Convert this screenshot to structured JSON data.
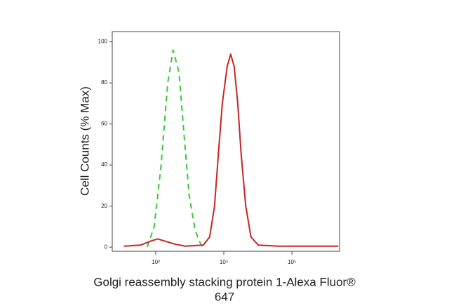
{
  "chart_data": {
    "type": "line",
    "ylabel": "Cell Counts (% Max)",
    "xlabel": [
      "Golgi reassembly stacking protein 1-Alexa Fluor®",
      "647"
    ],
    "xscale": "log",
    "xlim": [
      230,
      500000
    ],
    "ylim": [
      -2,
      105
    ],
    "xticks": [
      {
        "value": 1000,
        "label": "10³"
      },
      {
        "value": 10000,
        "label": "10⁴"
      },
      {
        "value": 100000,
        "label": "10⁵"
      }
    ],
    "yticks": [
      0,
      20,
      40,
      60,
      80,
      100
    ],
    "series": [
      {
        "color": "#33cc33",
        "dash": true,
        "x": [
          750,
          950,
          1200,
          1500,
          1800,
          2200,
          2600,
          3100,
          3800,
          4500,
          5000
        ],
        "values": [
          0,
          10,
          40,
          80,
          96,
          85,
          55,
          25,
          8,
          2,
          0
        ]
      },
      {
        "color": "#cc2222",
        "dash": false,
        "x": [
          340,
          600,
          850,
          1070,
          1350,
          1900,
          2700,
          5000,
          6200,
          7300,
          8300,
          9500,
          11200,
          12600,
          14200,
          16000,
          18000,
          21000,
          25000,
          32000,
          64000,
          480000
        ],
        "values": [
          0.5,
          1,
          3,
          4,
          3,
          1.5,
          0.5,
          1,
          5,
          20,
          45,
          70,
          88,
          94,
          88,
          70,
          45,
          20,
          5,
          1,
          0.5,
          0.5
        ]
      }
    ]
  }
}
